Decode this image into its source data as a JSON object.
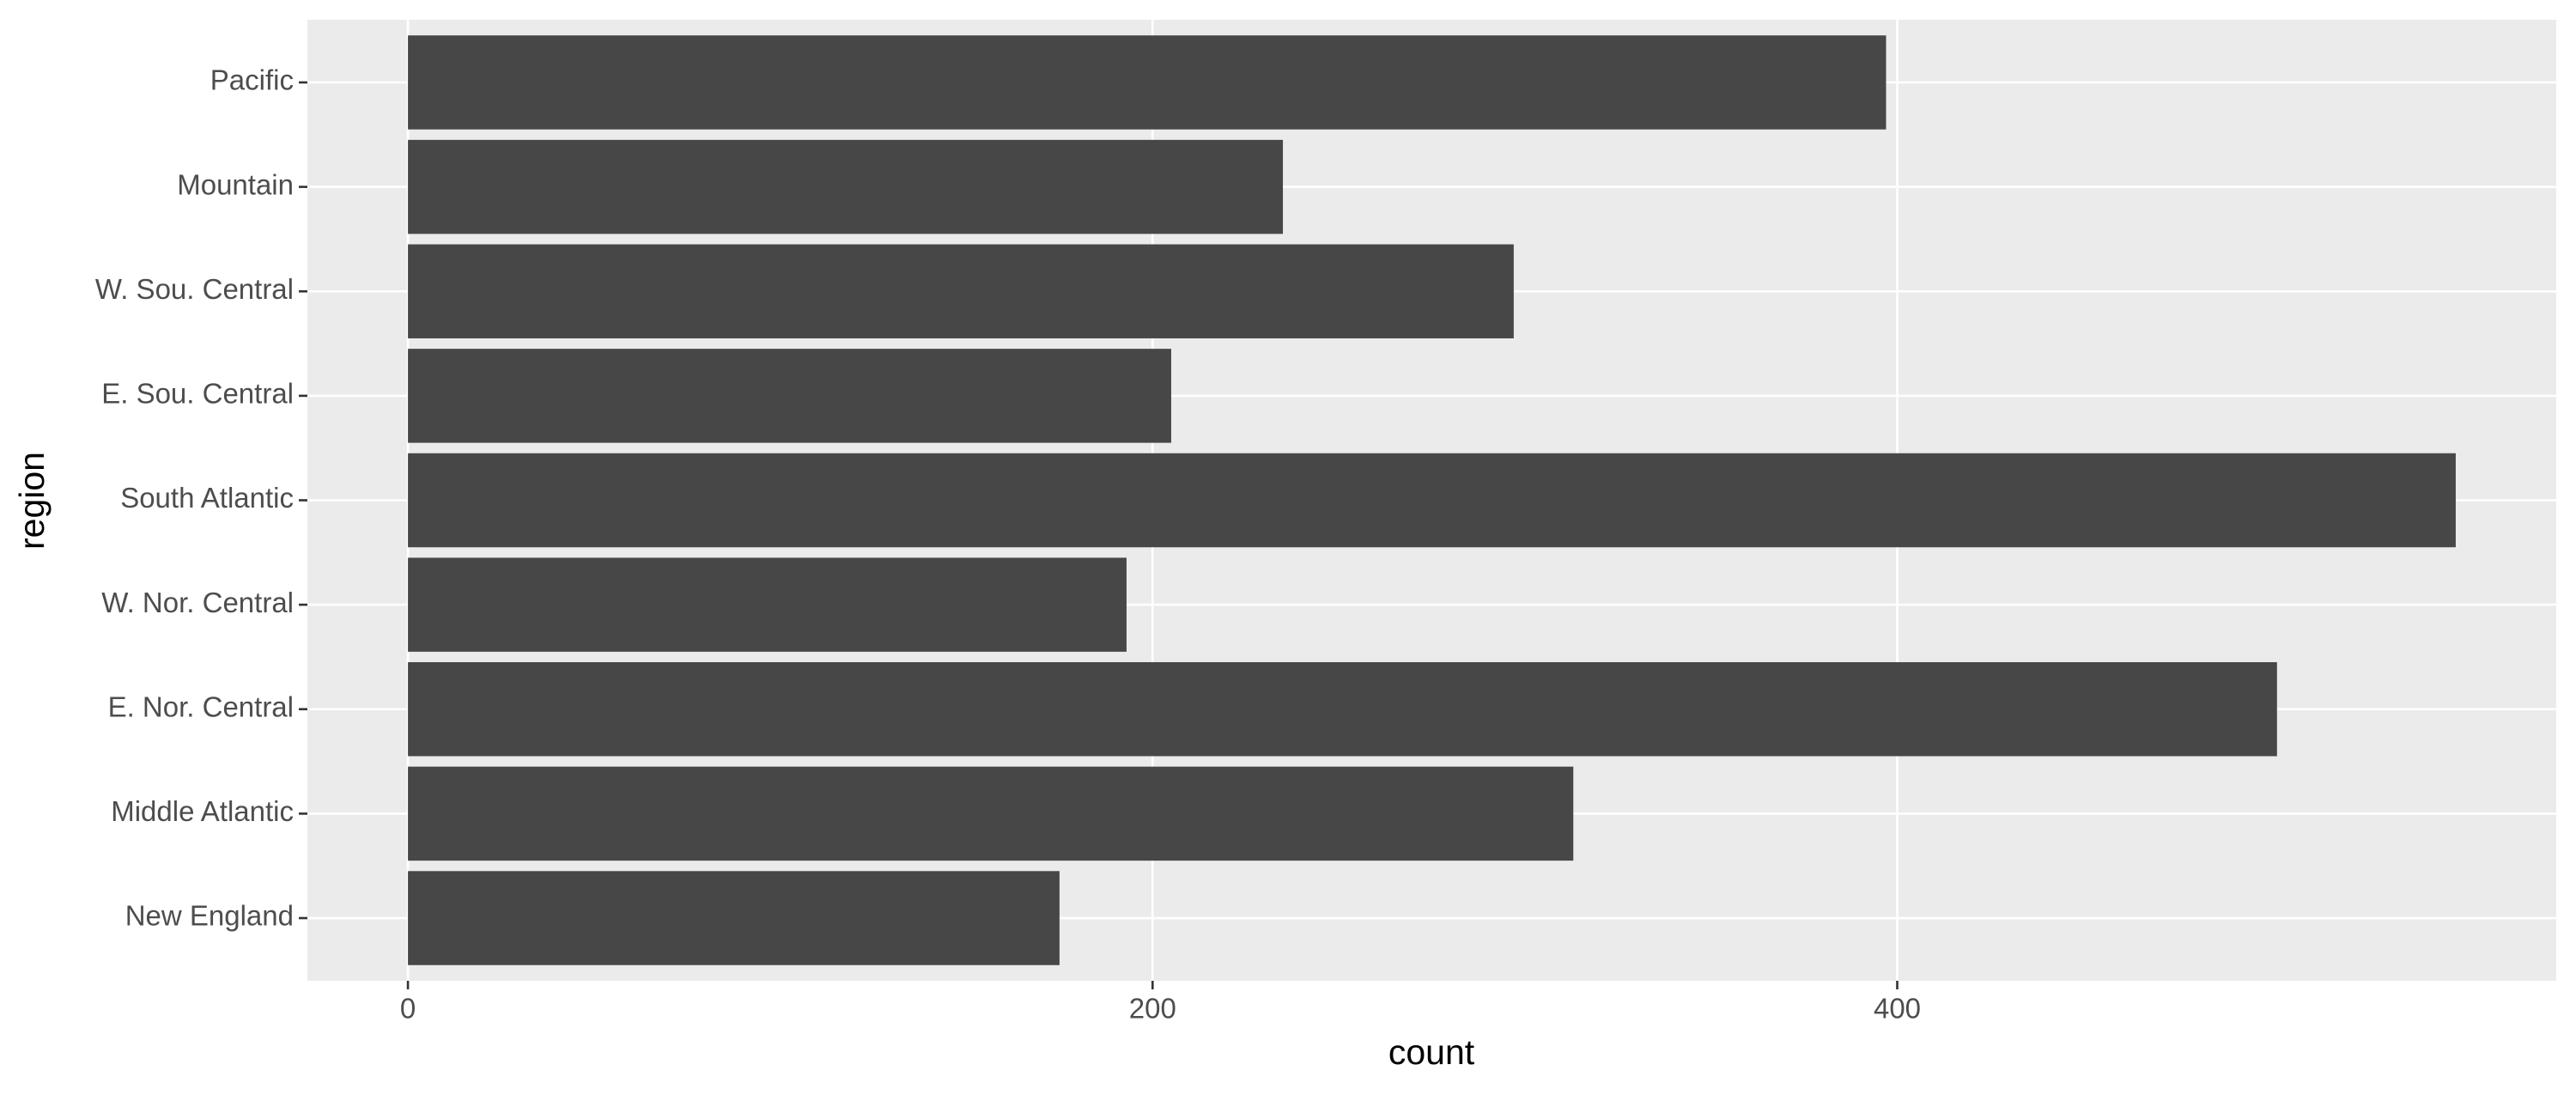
{
  "chart_data": {
    "type": "bar",
    "orientation": "horizontal",
    "x_label": "count",
    "y_label": "region",
    "categories": [
      "New England",
      "Middle Atlantic",
      "E. Nor. Central",
      "W. Nor. Central",
      "South Atlantic",
      "E. Sou. Central",
      "W. Sou. Central",
      "Mountain",
      "Pacific"
    ],
    "values": [
      175,
      313,
      502,
      193,
      550,
      205,
      297,
      235,
      397
    ],
    "color": "#474747",
    "xlim": [
      -27,
      577
    ],
    "xticks": [
      0,
      200,
      400
    ],
    "grid": true
  }
}
